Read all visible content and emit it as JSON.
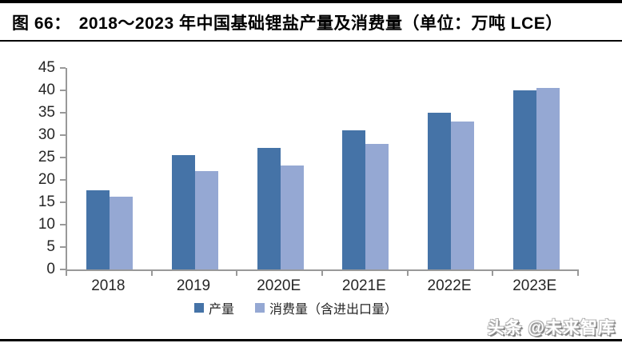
{
  "page": {
    "watermark": "头条 @未来智库"
  },
  "figure": {
    "label": "图 66：",
    "title": "2018～2023 年中国基础锂盐产量及消费量（单位：万吨 LCE）"
  },
  "chart_data": {
    "type": "bar",
    "title": "2018～2023 年中国基础锂盐产量及消费量",
    "unit": "万吨 LCE",
    "categories": [
      "2018",
      "2019",
      "2020E",
      "2021E",
      "2022E",
      "2023E"
    ],
    "series": [
      {
        "key": "production",
        "name": "产量",
        "color": "#4573A7",
        "values": [
          17.7,
          25.6,
          27.2,
          31.0,
          35.0,
          40.0
        ]
      },
      {
        "key": "consumption",
        "name": "消费量（含进出口量）",
        "color": "#95A8D3",
        "values": [
          16.2,
          21.9,
          23.3,
          28.0,
          33.0,
          40.5
        ]
      }
    ],
    "xlabel": "",
    "ylabel": "",
    "ylim": [
      0,
      45
    ],
    "ytick_step": 5,
    "grid": false,
    "legend_position": "bottom",
    "axis_color": "#999999"
  }
}
